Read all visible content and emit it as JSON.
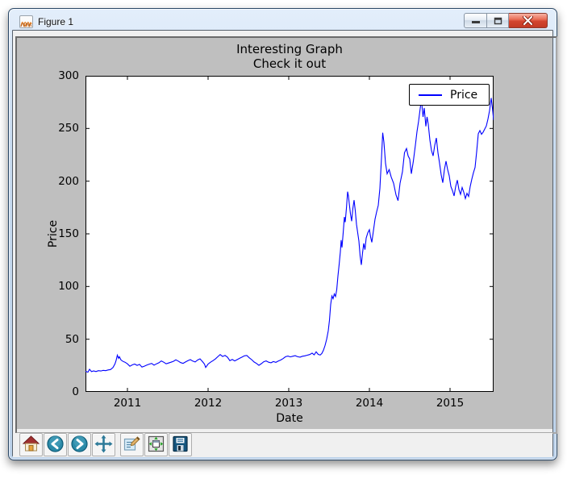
{
  "window": {
    "title": "Figure 1",
    "controls": [
      "minimize",
      "maximize",
      "close"
    ]
  },
  "chart_data": {
    "type": "line",
    "title": "Interesting Graph",
    "subtitle": "Check it out",
    "xlabel": "Date",
    "ylabel": "Price",
    "xlim": [
      2010.48,
      2015.54
    ],
    "ylim": [
      0,
      300
    ],
    "xticks": [
      2011,
      2012,
      2013,
      2014,
      2015
    ],
    "yticks": [
      0,
      50,
      100,
      150,
      200,
      250,
      300
    ],
    "grid": false,
    "legend": {
      "position": "upper right",
      "entries": [
        "Price"
      ]
    },
    "figure_facecolor": "#bfbfbf",
    "axes_facecolor": "#ffffff",
    "series": [
      {
        "name": "Price",
        "color": "#0000ff",
        "points": [
          [
            2010.48,
            19.6
          ],
          [
            2010.51,
            18.7
          ],
          [
            2010.53,
            21.4
          ],
          [
            2010.555,
            19.2
          ],
          [
            2010.58,
            19.9
          ],
          [
            2010.61,
            19.3
          ],
          [
            2010.64,
            20.1
          ],
          [
            2010.67,
            19.8
          ],
          [
            2010.7,
            20.4
          ],
          [
            2010.73,
            20.1
          ],
          [
            2010.76,
            20.8
          ],
          [
            2010.79,
            21.2
          ],
          [
            2010.82,
            23.0
          ],
          [
            2010.845,
            26.5
          ],
          [
            2010.86,
            30.0
          ],
          [
            2010.875,
            34.8
          ],
          [
            2010.89,
            31.8
          ],
          [
            2010.9,
            33.4
          ],
          [
            2010.92,
            30.3
          ],
          [
            2010.945,
            28.9
          ],
          [
            2010.97,
            28.2
          ],
          [
            2011.0,
            26.6
          ],
          [
            2011.03,
            24.3
          ],
          [
            2011.06,
            25.6
          ],
          [
            2011.09,
            26.4
          ],
          [
            2011.12,
            25.2
          ],
          [
            2011.15,
            26.1
          ],
          [
            2011.18,
            23.6
          ],
          [
            2011.21,
            24.4
          ],
          [
            2011.24,
            25.4
          ],
          [
            2011.27,
            26.3
          ],
          [
            2011.3,
            27.0
          ],
          [
            2011.33,
            25.4
          ],
          [
            2011.36,
            26.6
          ],
          [
            2011.39,
            27.6
          ],
          [
            2011.42,
            29.4
          ],
          [
            2011.45,
            28.2
          ],
          [
            2011.48,
            26.6
          ],
          [
            2011.51,
            27.4
          ],
          [
            2011.54,
            28.2
          ],
          [
            2011.57,
            29.0
          ],
          [
            2011.6,
            30.4
          ],
          [
            2011.63,
            29.2
          ],
          [
            2011.66,
            27.8
          ],
          [
            2011.69,
            27.1
          ],
          [
            2011.72,
            28.4
          ],
          [
            2011.75,
            29.6
          ],
          [
            2011.78,
            30.6
          ],
          [
            2011.81,
            29.2
          ],
          [
            2011.84,
            28.4
          ],
          [
            2011.87,
            30.2
          ],
          [
            2011.9,
            31.4
          ],
          [
            2011.93,
            28.8
          ],
          [
            2011.955,
            26.4
          ],
          [
            2011.97,
            23.2
          ],
          [
            2012.0,
            26.4
          ],
          [
            2012.03,
            28.2
          ],
          [
            2012.06,
            29.6
          ],
          [
            2012.09,
            31.2
          ],
          [
            2012.12,
            33.4
          ],
          [
            2012.15,
            35.4
          ],
          [
            2012.18,
            33.6
          ],
          [
            2012.21,
            34.6
          ],
          [
            2012.24,
            33.0
          ],
          [
            2012.27,
            29.6
          ],
          [
            2012.3,
            30.8
          ],
          [
            2012.33,
            29.4
          ],
          [
            2012.36,
            30.6
          ],
          [
            2012.39,
            31.8
          ],
          [
            2012.42,
            33.0
          ],
          [
            2012.45,
            34.2
          ],
          [
            2012.48,
            34.6
          ],
          [
            2012.51,
            32.4
          ],
          [
            2012.54,
            30.6
          ],
          [
            2012.57,
            28.4
          ],
          [
            2012.6,
            27.0
          ],
          [
            2012.63,
            25.2
          ],
          [
            2012.66,
            26.8
          ],
          [
            2012.69,
            28.6
          ],
          [
            2012.72,
            29.4
          ],
          [
            2012.75,
            28.2
          ],
          [
            2012.78,
            27.6
          ],
          [
            2012.81,
            28.8
          ],
          [
            2012.84,
            28.0
          ],
          [
            2012.87,
            29.2
          ],
          [
            2012.9,
            30.2
          ],
          [
            2012.93,
            31.6
          ],
          [
            2012.96,
            33.4
          ],
          [
            2012.99,
            34.0
          ],
          [
            2013.02,
            33.2
          ],
          [
            2013.05,
            33.8
          ],
          [
            2013.08,
            34.4
          ],
          [
            2013.11,
            33.4
          ],
          [
            2013.14,
            33.0
          ],
          [
            2013.17,
            33.8
          ],
          [
            2013.2,
            34.2
          ],
          [
            2013.23,
            34.8
          ],
          [
            2013.26,
            35.4
          ],
          [
            2013.29,
            36.8
          ],
          [
            2013.315,
            35.2
          ],
          [
            2013.34,
            38.0
          ],
          [
            2013.365,
            35.6
          ],
          [
            2013.39,
            35.0
          ],
          [
            2013.41,
            36.4
          ],
          [
            2013.43,
            39.5
          ],
          [
            2013.45,
            44.0
          ],
          [
            2013.47,
            50.0
          ],
          [
            2013.49,
            58.0
          ],
          [
            2013.505,
            68.0
          ],
          [
            2013.52,
            83.0
          ],
          [
            2013.535,
            91.0
          ],
          [
            2013.55,
            88.5
          ],
          [
            2013.565,
            93.0
          ],
          [
            2013.58,
            90.5
          ],
          [
            2013.595,
            97.0
          ],
          [
            2013.61,
            110.0
          ],
          [
            2013.625,
            121.0
          ],
          [
            2013.64,
            133.0
          ],
          [
            2013.65,
            144.0
          ],
          [
            2013.66,
            137.0
          ],
          [
            2013.675,
            151.0
          ],
          [
            2013.69,
            166.0
          ],
          [
            2013.7,
            161.0
          ],
          [
            2013.715,
            174.0
          ],
          [
            2013.73,
            190.0
          ],
          [
            2013.74,
            186.0
          ],
          [
            2013.75,
            179.0
          ],
          [
            2013.765,
            169.0
          ],
          [
            2013.78,
            162.0
          ],
          [
            2013.795,
            174.0
          ],
          [
            2013.81,
            182.0
          ],
          [
            2013.825,
            172.0
          ],
          [
            2013.84,
            159.0
          ],
          [
            2013.855,
            151.0
          ],
          [
            2013.87,
            143.0
          ],
          [
            2013.885,
            129.0
          ],
          [
            2013.9,
            120.5
          ],
          [
            2013.915,
            132.0
          ],
          [
            2013.93,
            141.0
          ],
          [
            2013.945,
            135.0
          ],
          [
            2013.96,
            146.0
          ],
          [
            2013.98,
            151.0
          ],
          [
            2014.0,
            154.0
          ],
          [
            2014.015,
            147.0
          ],
          [
            2014.03,
            142.0
          ],
          [
            2014.05,
            153.0
          ],
          [
            2014.07,
            164.0
          ],
          [
            2014.09,
            171.0
          ],
          [
            2014.11,
            177.0
          ],
          [
            2014.13,
            193.0
          ],
          [
            2014.15,
            222.0
          ],
          [
            2014.165,
            246.0
          ],
          [
            2014.18,
            237.0
          ],
          [
            2014.2,
            217.0
          ],
          [
            2014.22,
            207.0
          ],
          [
            2014.245,
            211.0
          ],
          [
            2014.27,
            204.0
          ],
          [
            2014.3,
            198.0
          ],
          [
            2014.33,
            187.0
          ],
          [
            2014.355,
            181.5
          ],
          [
            2014.38,
            198.0
          ],
          [
            2014.41,
            209.0
          ],
          [
            2014.435,
            227.0
          ],
          [
            2014.46,
            231.0
          ],
          [
            2014.48,
            224.0
          ],
          [
            2014.5,
            221.0
          ],
          [
            2014.52,
            207.0
          ],
          [
            2014.545,
            219.0
          ],
          [
            2014.57,
            234.0
          ],
          [
            2014.59,
            247.0
          ],
          [
            2014.61,
            257.0
          ],
          [
            2014.63,
            269.0
          ],
          [
            2014.645,
            278.0
          ],
          [
            2014.655,
            269.0
          ],
          [
            2014.665,
            261.0
          ],
          [
            2014.68,
            269.5
          ],
          [
            2014.7,
            252.0
          ],
          [
            2014.715,
            261.0
          ],
          [
            2014.73,
            254.0
          ],
          [
            2014.75,
            239.0
          ],
          [
            2014.77,
            229.0
          ],
          [
            2014.79,
            224.0
          ],
          [
            2014.81,
            234.0
          ],
          [
            2014.83,
            241.0
          ],
          [
            2014.85,
            227.0
          ],
          [
            2014.87,
            217.0
          ],
          [
            2014.89,
            206.0
          ],
          [
            2014.91,
            198.5
          ],
          [
            2014.93,
            211.0
          ],
          [
            2014.95,
            219.0
          ],
          [
            2014.97,
            211.0
          ],
          [
            2014.99,
            205.0
          ],
          [
            2015.01,
            195.0
          ],
          [
            2015.03,
            191.0
          ],
          [
            2015.05,
            186.0
          ],
          [
            2015.07,
            195.0
          ],
          [
            2015.09,
            201.0
          ],
          [
            2015.11,
            192.0
          ],
          [
            2015.13,
            187.5
          ],
          [
            2015.15,
            194.0
          ],
          [
            2015.17,
            189.5
          ],
          [
            2015.19,
            183.5
          ],
          [
            2015.21,
            188.5
          ],
          [
            2015.23,
            185.5
          ],
          [
            2015.25,
            195.0
          ],
          [
            2015.27,
            202.0
          ],
          [
            2015.29,
            208.0
          ],
          [
            2015.31,
            213.0
          ],
          [
            2015.33,
            228.0
          ],
          [
            2015.35,
            245.0
          ],
          [
            2015.37,
            248.0
          ],
          [
            2015.39,
            244.5
          ],
          [
            2015.41,
            246.5
          ],
          [
            2015.43,
            249.5
          ],
          [
            2015.45,
            252.5
          ],
          [
            2015.47,
            259.0
          ],
          [
            2015.49,
            267.0
          ],
          [
            2015.51,
            279.0
          ],
          [
            2015.53,
            266.0
          ],
          [
            2015.54,
            258.0
          ]
        ]
      }
    ]
  },
  "toolbar": {
    "buttons": [
      {
        "name": "home",
        "icon": "home-icon"
      },
      {
        "name": "back",
        "icon": "back-arrow-icon"
      },
      {
        "name": "forward",
        "icon": "forward-arrow-icon"
      },
      {
        "name": "pan",
        "icon": "pan-arrows-icon"
      },
      {
        "name": "zoom-to-rect",
        "icon": "zoom-rect-icon"
      },
      {
        "name": "configure-subplots",
        "icon": "subplots-icon"
      },
      {
        "name": "save",
        "icon": "save-floppy-icon"
      }
    ]
  }
}
